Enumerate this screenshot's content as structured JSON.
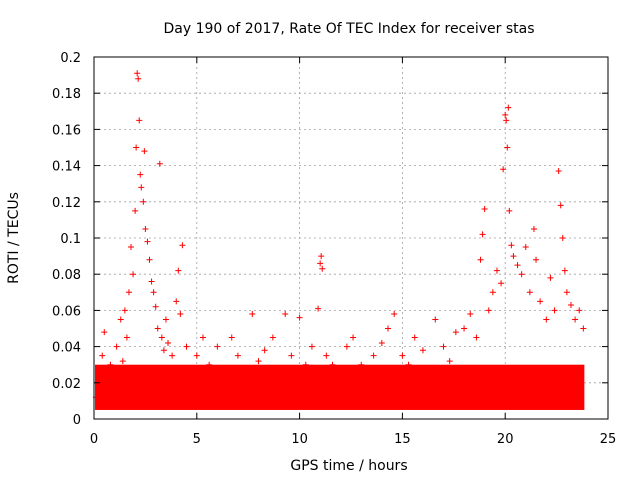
{
  "chart_data": {
    "type": "scatter",
    "title": "Day 190 of 2017, Rate Of TEC Index for receiver stas",
    "xlabel": "GPS time / hours",
    "ylabel": "ROTI / TECUs",
    "xlim": [
      0,
      25
    ],
    "ylim": [
      0,
      0.2
    ],
    "xticks": [
      0,
      5,
      10,
      15,
      20,
      25
    ],
    "yticks": [
      0,
      0.02,
      0.04,
      0.06,
      0.08,
      0.1,
      0.12,
      0.14,
      0.16,
      0.18,
      0.2
    ],
    "xtick_labels": [
      "0",
      "5",
      "10",
      "15",
      "20",
      "25"
    ],
    "ytick_labels": [
      "0",
      "0.02",
      "0.04",
      "0.06",
      "0.08",
      "0.1",
      "0.12",
      "0.14",
      "0.16",
      "0.18",
      "0.2"
    ],
    "grid": true,
    "marker": "+",
    "series_color": "#ff0000",
    "series": [
      {
        "name": "ROTI",
        "points": [
          [
            0.1,
            0.012
          ],
          [
            0.2,
            0.025
          ],
          [
            0.3,
            0.018
          ],
          [
            0.4,
            0.035
          ],
          [
            0.5,
            0.048
          ],
          [
            0.6,
            0.022
          ],
          [
            0.8,
            0.03
          ],
          [
            0.9,
            0.015
          ],
          [
            1.0,
            0.027
          ],
          [
            1.1,
            0.04
          ],
          [
            1.2,
            0.02
          ],
          [
            1.3,
            0.055
          ],
          [
            1.4,
            0.032
          ],
          [
            1.5,
            0.06
          ],
          [
            1.6,
            0.045
          ],
          [
            1.7,
            0.07
          ],
          [
            1.8,
            0.095
          ],
          [
            1.9,
            0.08
          ],
          [
            2.0,
            0.115
          ],
          [
            2.05,
            0.15
          ],
          [
            2.1,
            0.191
          ],
          [
            2.15,
            0.188
          ],
          [
            2.2,
            0.165
          ],
          [
            2.25,
            0.135
          ],
          [
            2.3,
            0.128
          ],
          [
            2.4,
            0.12
          ],
          [
            2.45,
            0.148
          ],
          [
            2.5,
            0.105
          ],
          [
            2.6,
            0.098
          ],
          [
            2.7,
            0.088
          ],
          [
            2.8,
            0.076
          ],
          [
            2.9,
            0.07
          ],
          [
            3.0,
            0.062
          ],
          [
            3.1,
            0.05
          ],
          [
            3.2,
            0.141
          ],
          [
            3.3,
            0.045
          ],
          [
            3.4,
            0.038
          ],
          [
            3.5,
            0.055
          ],
          [
            3.6,
            0.042
          ],
          [
            3.8,
            0.035
          ],
          [
            4.0,
            0.065
          ],
          [
            4.1,
            0.082
          ],
          [
            4.2,
            0.058
          ],
          [
            4.3,
            0.096
          ],
          [
            4.5,
            0.04
          ],
          [
            4.7,
            0.028
          ],
          [
            5.0,
            0.035
          ],
          [
            5.3,
            0.045
          ],
          [
            5.6,
            0.03
          ],
          [
            6.0,
            0.04
          ],
          [
            6.3,
            0.025
          ],
          [
            6.7,
            0.045
          ],
          [
            7.0,
            0.035
          ],
          [
            7.3,
            0.028
          ],
          [
            7.7,
            0.058
          ],
          [
            8.0,
            0.032
          ],
          [
            8.3,
            0.038
          ],
          [
            8.7,
            0.045
          ],
          [
            9.0,
            0.025
          ],
          [
            9.3,
            0.058
          ],
          [
            9.6,
            0.035
          ],
          [
            10.0,
            0.056
          ],
          [
            10.3,
            0.03
          ],
          [
            10.6,
            0.04
          ],
          [
            10.9,
            0.061
          ],
          [
            11.0,
            0.086
          ],
          [
            11.05,
            0.09
          ],
          [
            11.1,
            0.083
          ],
          [
            11.3,
            0.035
          ],
          [
            11.6,
            0.03
          ],
          [
            12.0,
            0.028
          ],
          [
            12.3,
            0.04
          ],
          [
            12.6,
            0.045
          ],
          [
            13.0,
            0.03
          ],
          [
            13.3,
            0.025
          ],
          [
            13.6,
            0.035
          ],
          [
            14.0,
            0.042
          ],
          [
            14.3,
            0.05
          ],
          [
            14.6,
            0.058
          ],
          [
            15.0,
            0.035
          ],
          [
            15.3,
            0.03
          ],
          [
            15.6,
            0.045
          ],
          [
            16.0,
            0.038
          ],
          [
            16.3,
            0.028
          ],
          [
            16.6,
            0.055
          ],
          [
            17.0,
            0.04
          ],
          [
            17.3,
            0.032
          ],
          [
            17.6,
            0.048
          ],
          [
            18.0,
            0.05
          ],
          [
            18.3,
            0.058
          ],
          [
            18.6,
            0.045
          ],
          [
            18.8,
            0.088
          ],
          [
            18.9,
            0.102
          ],
          [
            19.0,
            0.116
          ],
          [
            19.2,
            0.06
          ],
          [
            19.4,
            0.07
          ],
          [
            19.6,
            0.082
          ],
          [
            19.8,
            0.075
          ],
          [
            19.9,
            0.138
          ],
          [
            20.0,
            0.168
          ],
          [
            20.05,
            0.165
          ],
          [
            20.1,
            0.15
          ],
          [
            20.15,
            0.172
          ],
          [
            20.2,
            0.115
          ],
          [
            20.3,
            0.096
          ],
          [
            20.4,
            0.09
          ],
          [
            20.6,
            0.085
          ],
          [
            20.8,
            0.08
          ],
          [
            21.0,
            0.095
          ],
          [
            21.2,
            0.07
          ],
          [
            21.4,
            0.105
          ],
          [
            21.5,
            0.088
          ],
          [
            21.7,
            0.065
          ],
          [
            22.0,
            0.055
          ],
          [
            22.2,
            0.078
          ],
          [
            22.4,
            0.06
          ],
          [
            22.6,
            0.137
          ],
          [
            22.7,
            0.118
          ],
          [
            22.8,
            0.1
          ],
          [
            22.9,
            0.082
          ],
          [
            23.0,
            0.07
          ],
          [
            23.2,
            0.063
          ],
          [
            23.4,
            0.055
          ],
          [
            23.6,
            0.06
          ],
          [
            23.8,
            0.05
          ],
          [
            0.3,
            0.008
          ],
          [
            1.5,
            0.01
          ],
          [
            2.5,
            0.014
          ],
          [
            3.5,
            0.012
          ],
          [
            4.5,
            0.01
          ],
          [
            5.5,
            0.008
          ],
          [
            6.5,
            0.009
          ],
          [
            7.5,
            0.011
          ],
          [
            8.5,
            0.01
          ],
          [
            9.5,
            0.012
          ],
          [
            10.5,
            0.01
          ],
          [
            11.5,
            0.009
          ],
          [
            12.5,
            0.011
          ],
          [
            13.5,
            0.01
          ],
          [
            14.5,
            0.012
          ],
          [
            15.5,
            0.011
          ],
          [
            16.5,
            0.01
          ],
          [
            17.5,
            0.012
          ],
          [
            18.5,
            0.013
          ],
          [
            19.5,
            0.014
          ],
          [
            20.5,
            0.015
          ],
          [
            21.5,
            0.013
          ],
          [
            22.5,
            0.012
          ],
          [
            23.5,
            0.011
          ]
        ]
      }
    ]
  }
}
